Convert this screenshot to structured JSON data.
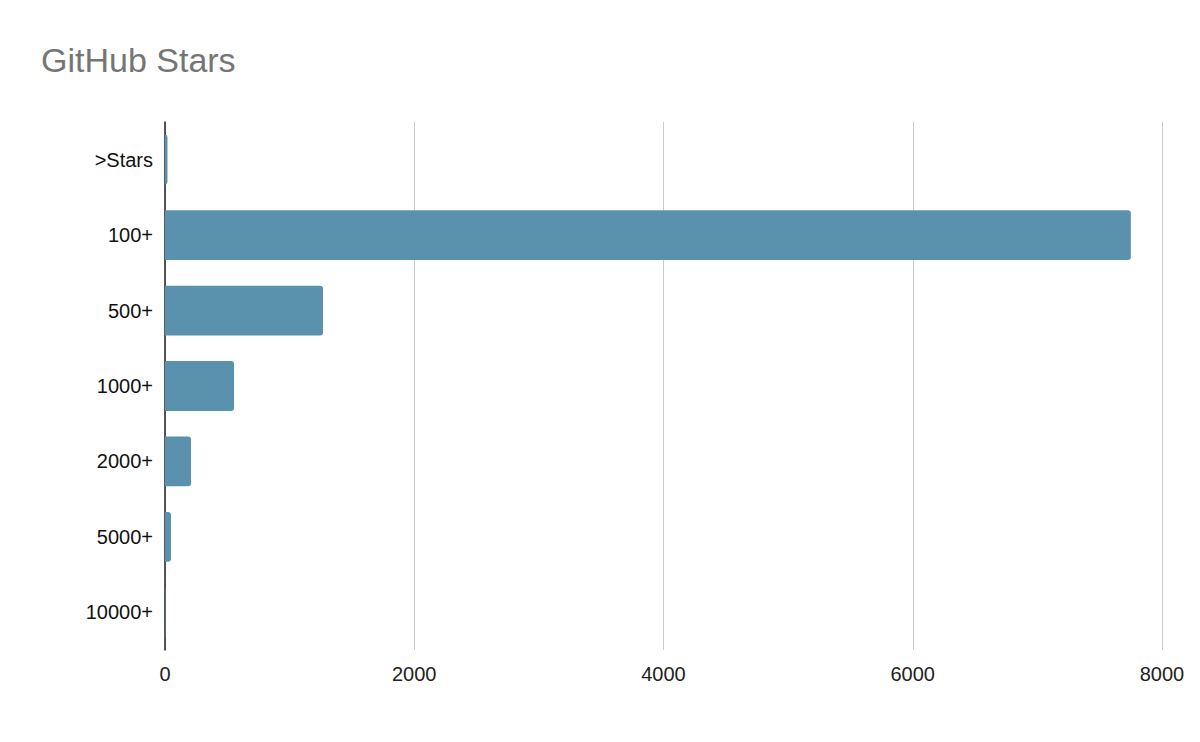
{
  "chart_data": {
    "type": "bar",
    "title": "GitHub Stars",
    "orientation": "horizontal",
    "categories": [
      ">Stars",
      "100+",
      "500+",
      "1000+",
      "2000+",
      "5000+",
      "10000+"
    ],
    "values": [
      20,
      7750,
      1268,
      554,
      209,
      48,
      3
    ],
    "color": "#5a92ae",
    "xlim": [
      0,
      8000
    ],
    "xticks": [
      0,
      2000,
      4000,
      6000,
      8000
    ],
    "grid": true
  }
}
